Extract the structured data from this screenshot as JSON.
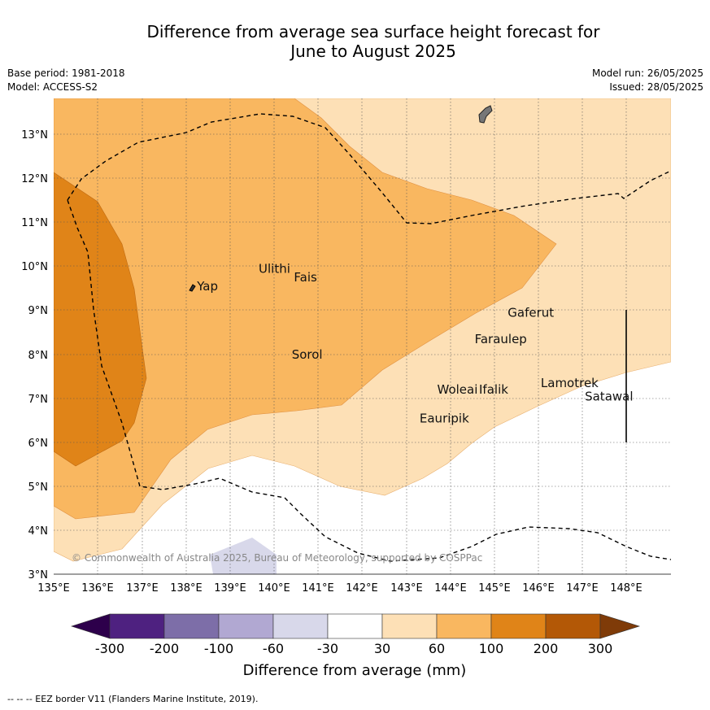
{
  "title_line1": "Difference from average sea surface height forecast for",
  "title_line2": "June to August 2025",
  "base_period": "Base period: 1981-2018",
  "model": "Model: ACCESS-S2",
  "model_run": "Model run: 26/05/2025",
  "issued": "Issued: 28/05/2025",
  "copyright": "© Commonwealth of Australia 2025, Bureau of Meteorology, supported by COSPPac",
  "footer": "--  --  -- EEZ border V11 (Flanders Marine Institute, 2019).",
  "map": {
    "lon_range": [
      135,
      149
    ],
    "lat_range": [
      3,
      13.8
    ],
    "lon_ticks": [
      "135°E",
      "136°E",
      "137°E",
      "138°E",
      "139°E",
      "140°E",
      "141°E",
      "142°E",
      "143°E",
      "144°E",
      "145°E",
      "146°E",
      "147°E",
      "148°E"
    ],
    "lat_ticks": [
      "3°N",
      "4°N",
      "5°N",
      "6°N",
      "7°N",
      "8°N",
      "9°N",
      "10°N",
      "11°N",
      "12°N",
      "13°N"
    ],
    "places": [
      {
        "name": "Yap",
        "lon": 138.25,
        "lat": 9.45
      },
      {
        "name": "Ulithi",
        "lon": 139.65,
        "lat": 9.85
      },
      {
        "name": "Fais",
        "lon": 140.45,
        "lat": 9.65
      },
      {
        "name": "Sorol",
        "lon": 140.4,
        "lat": 7.9
      },
      {
        "name": "Gaferut",
        "lon": 145.3,
        "lat": 8.85
      },
      {
        "name": "Faraulep",
        "lon": 144.55,
        "lat": 8.25
      },
      {
        "name": "Woleai",
        "lon": 143.7,
        "lat": 7.1
      },
      {
        "name": "Ifalik",
        "lon": 144.65,
        "lat": 7.1
      },
      {
        "name": "Lamotrek",
        "lon": 146.05,
        "lat": 7.25
      },
      {
        "name": "Satawal",
        "lon": 147.05,
        "lat": 6.95
      },
      {
        "name": "Eauripik",
        "lon": 143.3,
        "lat": 6.45
      }
    ]
  },
  "legend": {
    "title": "Difference from average (mm)",
    "labels": [
      "-300",
      "-200",
      "-100",
      "-60",
      "-30",
      "30",
      "60",
      "100",
      "200",
      "300"
    ],
    "colors": [
      "#4e2180",
      "#7d6ea8",
      "#b1a8d2",
      "#d8d8ea",
      "#ffffff",
      "#fde0b6",
      "#f9b760",
      "#e08418",
      "#b35806",
      "#7f3b08",
      "#2d004b"
    ]
  }
}
